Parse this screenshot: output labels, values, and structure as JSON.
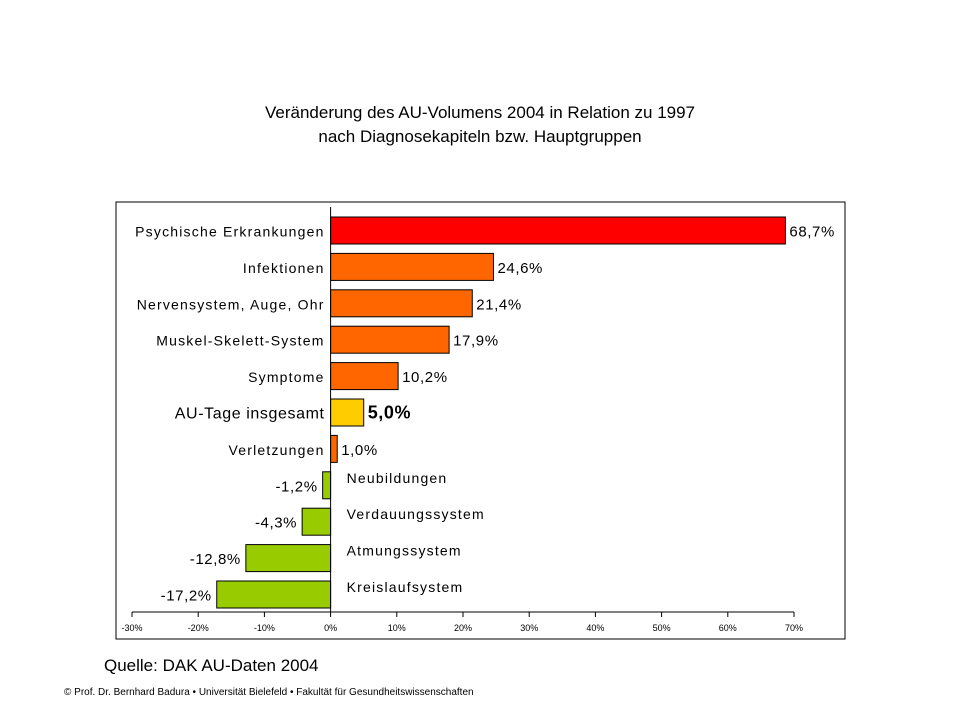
{
  "title_line1": "Veränderung des AU-Volumens 2004 in Relation zu 1997",
  "title_line2": "nach Diagnosekapiteln bzw. Hauptgruppen",
  "source": "Quelle: DAK AU-Daten 2004",
  "copyright": "© Prof. Dr. Bernhard Badura • Universität Bielefeld • Fakultät für Gesundheitswissenschaften",
  "chart_data": {
    "type": "bar",
    "orientation": "horizontal",
    "categories": [
      "Psychische Erkrankungen",
      "Infektionen",
      "Nervensystem, Auge, Ohr",
      "Muskel-Skelett-System",
      "Symptome",
      "AU-Tage insgesamt",
      "Verletzungen",
      "Neubildungen",
      "Verdauungssystem",
      "Atmungssystem",
      "Kreislaufsystem"
    ],
    "values": [
      68.7,
      24.6,
      21.4,
      17.9,
      10.2,
      5.0,
      1.0,
      -1.2,
      -4.3,
      -12.8,
      -17.2
    ],
    "value_labels": [
      "68,7%",
      "24,6%",
      "21,4%",
      "17,9%",
      "10,2%",
      "5,0%",
      "1,0%",
      "-1,2%",
      "-4,3%",
      "-12,8%",
      "-17,2%"
    ],
    "colors": [
      "#ff0000",
      "#ff6600",
      "#ff6600",
      "#ff6600",
      "#ff6600",
      "#ffcc00",
      "#ff6600",
      "#99cc00",
      "#99cc00",
      "#99cc00",
      "#99cc00"
    ],
    "xlim": [
      -30,
      70
    ],
    "x_ticks": [
      -30,
      -20,
      -10,
      0,
      10,
      20,
      30,
      40,
      50,
      60,
      70
    ],
    "x_tick_labels": [
      "-30%",
      "-20%",
      "-10%",
      "0%",
      "10%",
      "20%",
      "30%",
      "40%",
      "50%",
      "60%",
      "70%"
    ],
    "grid": false,
    "legend": "none"
  }
}
